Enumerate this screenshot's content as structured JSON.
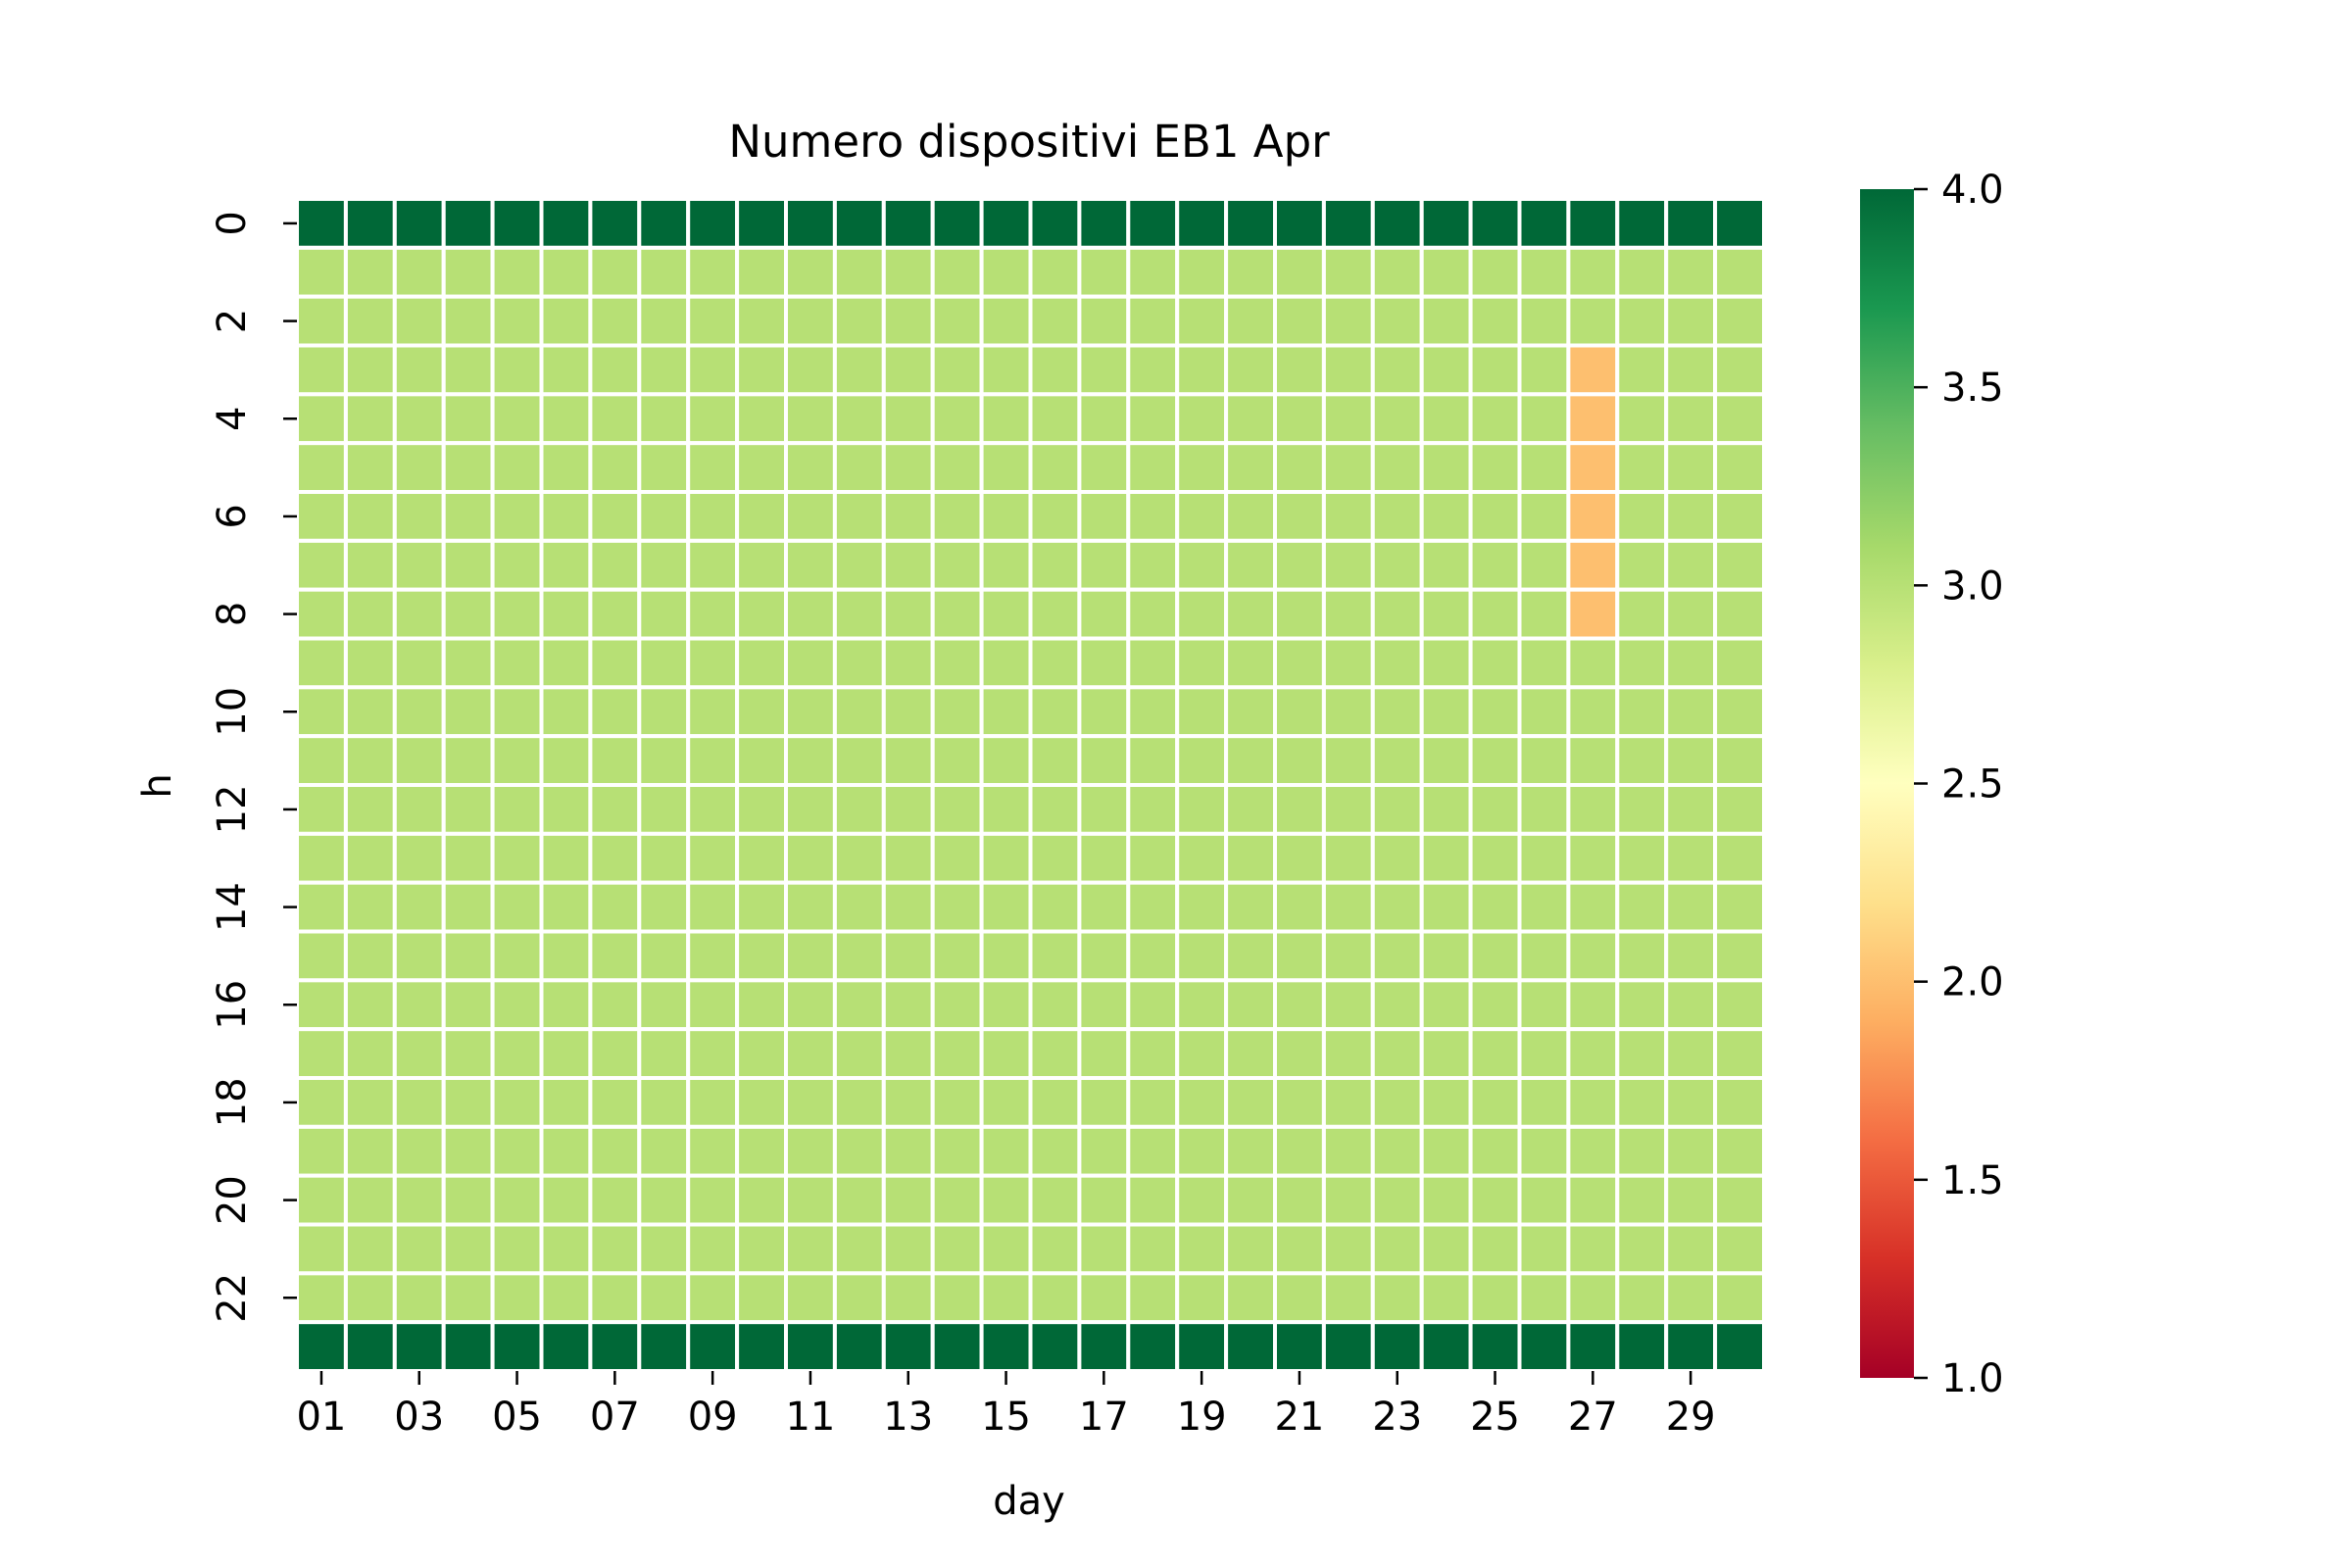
{
  "chart_data": {
    "type": "heatmap",
    "title": "Numero dispositivi EB1 Apr",
    "xlabel": "day",
    "ylabel": "h",
    "x": [
      "01",
      "02",
      "03",
      "04",
      "05",
      "06",
      "07",
      "08",
      "09",
      "10",
      "11",
      "12",
      "13",
      "14",
      "15",
      "16",
      "17",
      "18",
      "19",
      "20",
      "21",
      "22",
      "23",
      "24",
      "25",
      "26",
      "27",
      "28",
      "29",
      "30"
    ],
    "y": [
      0,
      1,
      2,
      3,
      4,
      5,
      6,
      7,
      8,
      9,
      10,
      11,
      12,
      13,
      14,
      15,
      16,
      17,
      18,
      19,
      20,
      21,
      22,
      23
    ],
    "x_tick_labels": [
      "01",
      "03",
      "05",
      "07",
      "09",
      "11",
      "13",
      "15",
      "17",
      "19",
      "21",
      "23",
      "25",
      "27",
      "29"
    ],
    "y_tick_labels": [
      "0",
      "2",
      "4",
      "6",
      "8",
      "10",
      "12",
      "14",
      "16",
      "18",
      "20",
      "22"
    ],
    "values": [
      [
        4,
        4,
        4,
        4,
        4,
        4,
        4,
        4,
        4,
        4,
        4,
        4,
        4,
        4,
        4,
        4,
        4,
        4,
        4,
        4,
        4,
        4,
        4,
        4,
        4,
        4,
        4,
        4,
        4,
        4
      ],
      [
        3,
        3,
        3,
        3,
        3,
        3,
        3,
        3,
        3,
        3,
        3,
        3,
        3,
        3,
        3,
        3,
        3,
        3,
        3,
        3,
        3,
        3,
        3,
        3,
        3,
        3,
        3,
        3,
        3,
        3
      ],
      [
        3,
        3,
        3,
        3,
        3,
        3,
        3,
        3,
        3,
        3,
        3,
        3,
        3,
        3,
        3,
        3,
        3,
        3,
        3,
        3,
        3,
        3,
        3,
        3,
        3,
        3,
        3,
        3,
        3,
        3
      ],
      [
        3,
        3,
        3,
        3,
        3,
        3,
        3,
        3,
        3,
        3,
        3,
        3,
        3,
        3,
        3,
        3,
        3,
        3,
        3,
        3,
        3,
        3,
        3,
        3,
        3,
        3,
        2,
        3,
        3,
        3
      ],
      [
        3,
        3,
        3,
        3,
        3,
        3,
        3,
        3,
        3,
        3,
        3,
        3,
        3,
        3,
        3,
        3,
        3,
        3,
        3,
        3,
        3,
        3,
        3,
        3,
        3,
        3,
        2,
        3,
        3,
        3
      ],
      [
        3,
        3,
        3,
        3,
        3,
        3,
        3,
        3,
        3,
        3,
        3,
        3,
        3,
        3,
        3,
        3,
        3,
        3,
        3,
        3,
        3,
        3,
        3,
        3,
        3,
        3,
        2,
        3,
        3,
        3
      ],
      [
        3,
        3,
        3,
        3,
        3,
        3,
        3,
        3,
        3,
        3,
        3,
        3,
        3,
        3,
        3,
        3,
        3,
        3,
        3,
        3,
        3,
        3,
        3,
        3,
        3,
        3,
        2,
        3,
        3,
        3
      ],
      [
        3,
        3,
        3,
        3,
        3,
        3,
        3,
        3,
        3,
        3,
        3,
        3,
        3,
        3,
        3,
        3,
        3,
        3,
        3,
        3,
        3,
        3,
        3,
        3,
        3,
        3,
        2,
        3,
        3,
        3
      ],
      [
        3,
        3,
        3,
        3,
        3,
        3,
        3,
        3,
        3,
        3,
        3,
        3,
        3,
        3,
        3,
        3,
        3,
        3,
        3,
        3,
        3,
        3,
        3,
        3,
        3,
        3,
        2,
        3,
        3,
        3
      ],
      [
        3,
        3,
        3,
        3,
        3,
        3,
        3,
        3,
        3,
        3,
        3,
        3,
        3,
        3,
        3,
        3,
        3,
        3,
        3,
        3,
        3,
        3,
        3,
        3,
        3,
        3,
        3,
        3,
        3,
        3
      ],
      [
        3,
        3,
        3,
        3,
        3,
        3,
        3,
        3,
        3,
        3,
        3,
        3,
        3,
        3,
        3,
        3,
        3,
        3,
        3,
        3,
        3,
        3,
        3,
        3,
        3,
        3,
        3,
        3,
        3,
        3
      ],
      [
        3,
        3,
        3,
        3,
        3,
        3,
        3,
        3,
        3,
        3,
        3,
        3,
        3,
        3,
        3,
        3,
        3,
        3,
        3,
        3,
        3,
        3,
        3,
        3,
        3,
        3,
        3,
        3,
        3,
        3
      ],
      [
        3,
        3,
        3,
        3,
        3,
        3,
        3,
        3,
        3,
        3,
        3,
        3,
        3,
        3,
        3,
        3,
        3,
        3,
        3,
        3,
        3,
        3,
        3,
        3,
        3,
        3,
        3,
        3,
        3,
        3
      ],
      [
        3,
        3,
        3,
        3,
        3,
        3,
        3,
        3,
        3,
        3,
        3,
        3,
        3,
        3,
        3,
        3,
        3,
        3,
        3,
        3,
        3,
        3,
        3,
        3,
        3,
        3,
        3,
        3,
        3,
        3
      ],
      [
        3,
        3,
        3,
        3,
        3,
        3,
        3,
        3,
        3,
        3,
        3,
        3,
        3,
        3,
        3,
        3,
        3,
        3,
        3,
        3,
        3,
        3,
        3,
        3,
        3,
        3,
        3,
        3,
        3,
        3
      ],
      [
        3,
        3,
        3,
        3,
        3,
        3,
        3,
        3,
        3,
        3,
        3,
        3,
        3,
        3,
        3,
        3,
        3,
        3,
        3,
        3,
        3,
        3,
        3,
        3,
        3,
        3,
        3,
        3,
        3,
        3
      ],
      [
        3,
        3,
        3,
        3,
        3,
        3,
        3,
        3,
        3,
        3,
        3,
        3,
        3,
        3,
        3,
        3,
        3,
        3,
        3,
        3,
        3,
        3,
        3,
        3,
        3,
        3,
        3,
        3,
        3,
        3
      ],
      [
        3,
        3,
        3,
        3,
        3,
        3,
        3,
        3,
        3,
        3,
        3,
        3,
        3,
        3,
        3,
        3,
        3,
        3,
        3,
        3,
        3,
        3,
        3,
        3,
        3,
        3,
        3,
        3,
        3,
        3
      ],
      [
        3,
        3,
        3,
        3,
        3,
        3,
        3,
        3,
        3,
        3,
        3,
        3,
        3,
        3,
        3,
        3,
        3,
        3,
        3,
        3,
        3,
        3,
        3,
        3,
        3,
        3,
        3,
        3,
        3,
        3
      ],
      [
        3,
        3,
        3,
        3,
        3,
        3,
        3,
        3,
        3,
        3,
        3,
        3,
        3,
        3,
        3,
        3,
        3,
        3,
        3,
        3,
        3,
        3,
        3,
        3,
        3,
        3,
        3,
        3,
        3,
        3
      ],
      [
        3,
        3,
        3,
        3,
        3,
        3,
        3,
        3,
        3,
        3,
        3,
        3,
        3,
        3,
        3,
        3,
        3,
        3,
        3,
        3,
        3,
        3,
        3,
        3,
        3,
        3,
        3,
        3,
        3,
        3
      ],
      [
        3,
        3,
        3,
        3,
        3,
        3,
        3,
        3,
        3,
        3,
        3,
        3,
        3,
        3,
        3,
        3,
        3,
        3,
        3,
        3,
        3,
        3,
        3,
        3,
        3,
        3,
        3,
        3,
        3,
        3
      ],
      [
        3,
        3,
        3,
        3,
        3,
        3,
        3,
        3,
        3,
        3,
        3,
        3,
        3,
        3,
        3,
        3,
        3,
        3,
        3,
        3,
        3,
        3,
        3,
        3,
        3,
        3,
        3,
        3,
        3,
        3
      ],
      [
        4,
        4,
        4,
        4,
        4,
        4,
        4,
        4,
        4,
        4,
        4,
        4,
        4,
        4,
        4,
        4,
        4,
        4,
        4,
        4,
        4,
        4,
        4,
        4,
        4,
        4,
        4,
        4,
        4,
        4
      ]
    ],
    "vmin": 1.0,
    "vmax": 4.0,
    "colorbar_ticks": [
      "1.0",
      "1.5",
      "2.0",
      "2.5",
      "3.0",
      "3.5",
      "4.0"
    ],
    "colormap": "RdYlGn",
    "colormap_stops": [
      "#a50026",
      "#d73027",
      "#f46d43",
      "#fdae61",
      "#fee08b",
      "#ffffbf",
      "#d9ef8b",
      "#a6d96a",
      "#66bd63",
      "#1a9850",
      "#006837"
    ],
    "cell_border_color": "#ffffff",
    "grid": false,
    "legend": "colorbar-right"
  }
}
